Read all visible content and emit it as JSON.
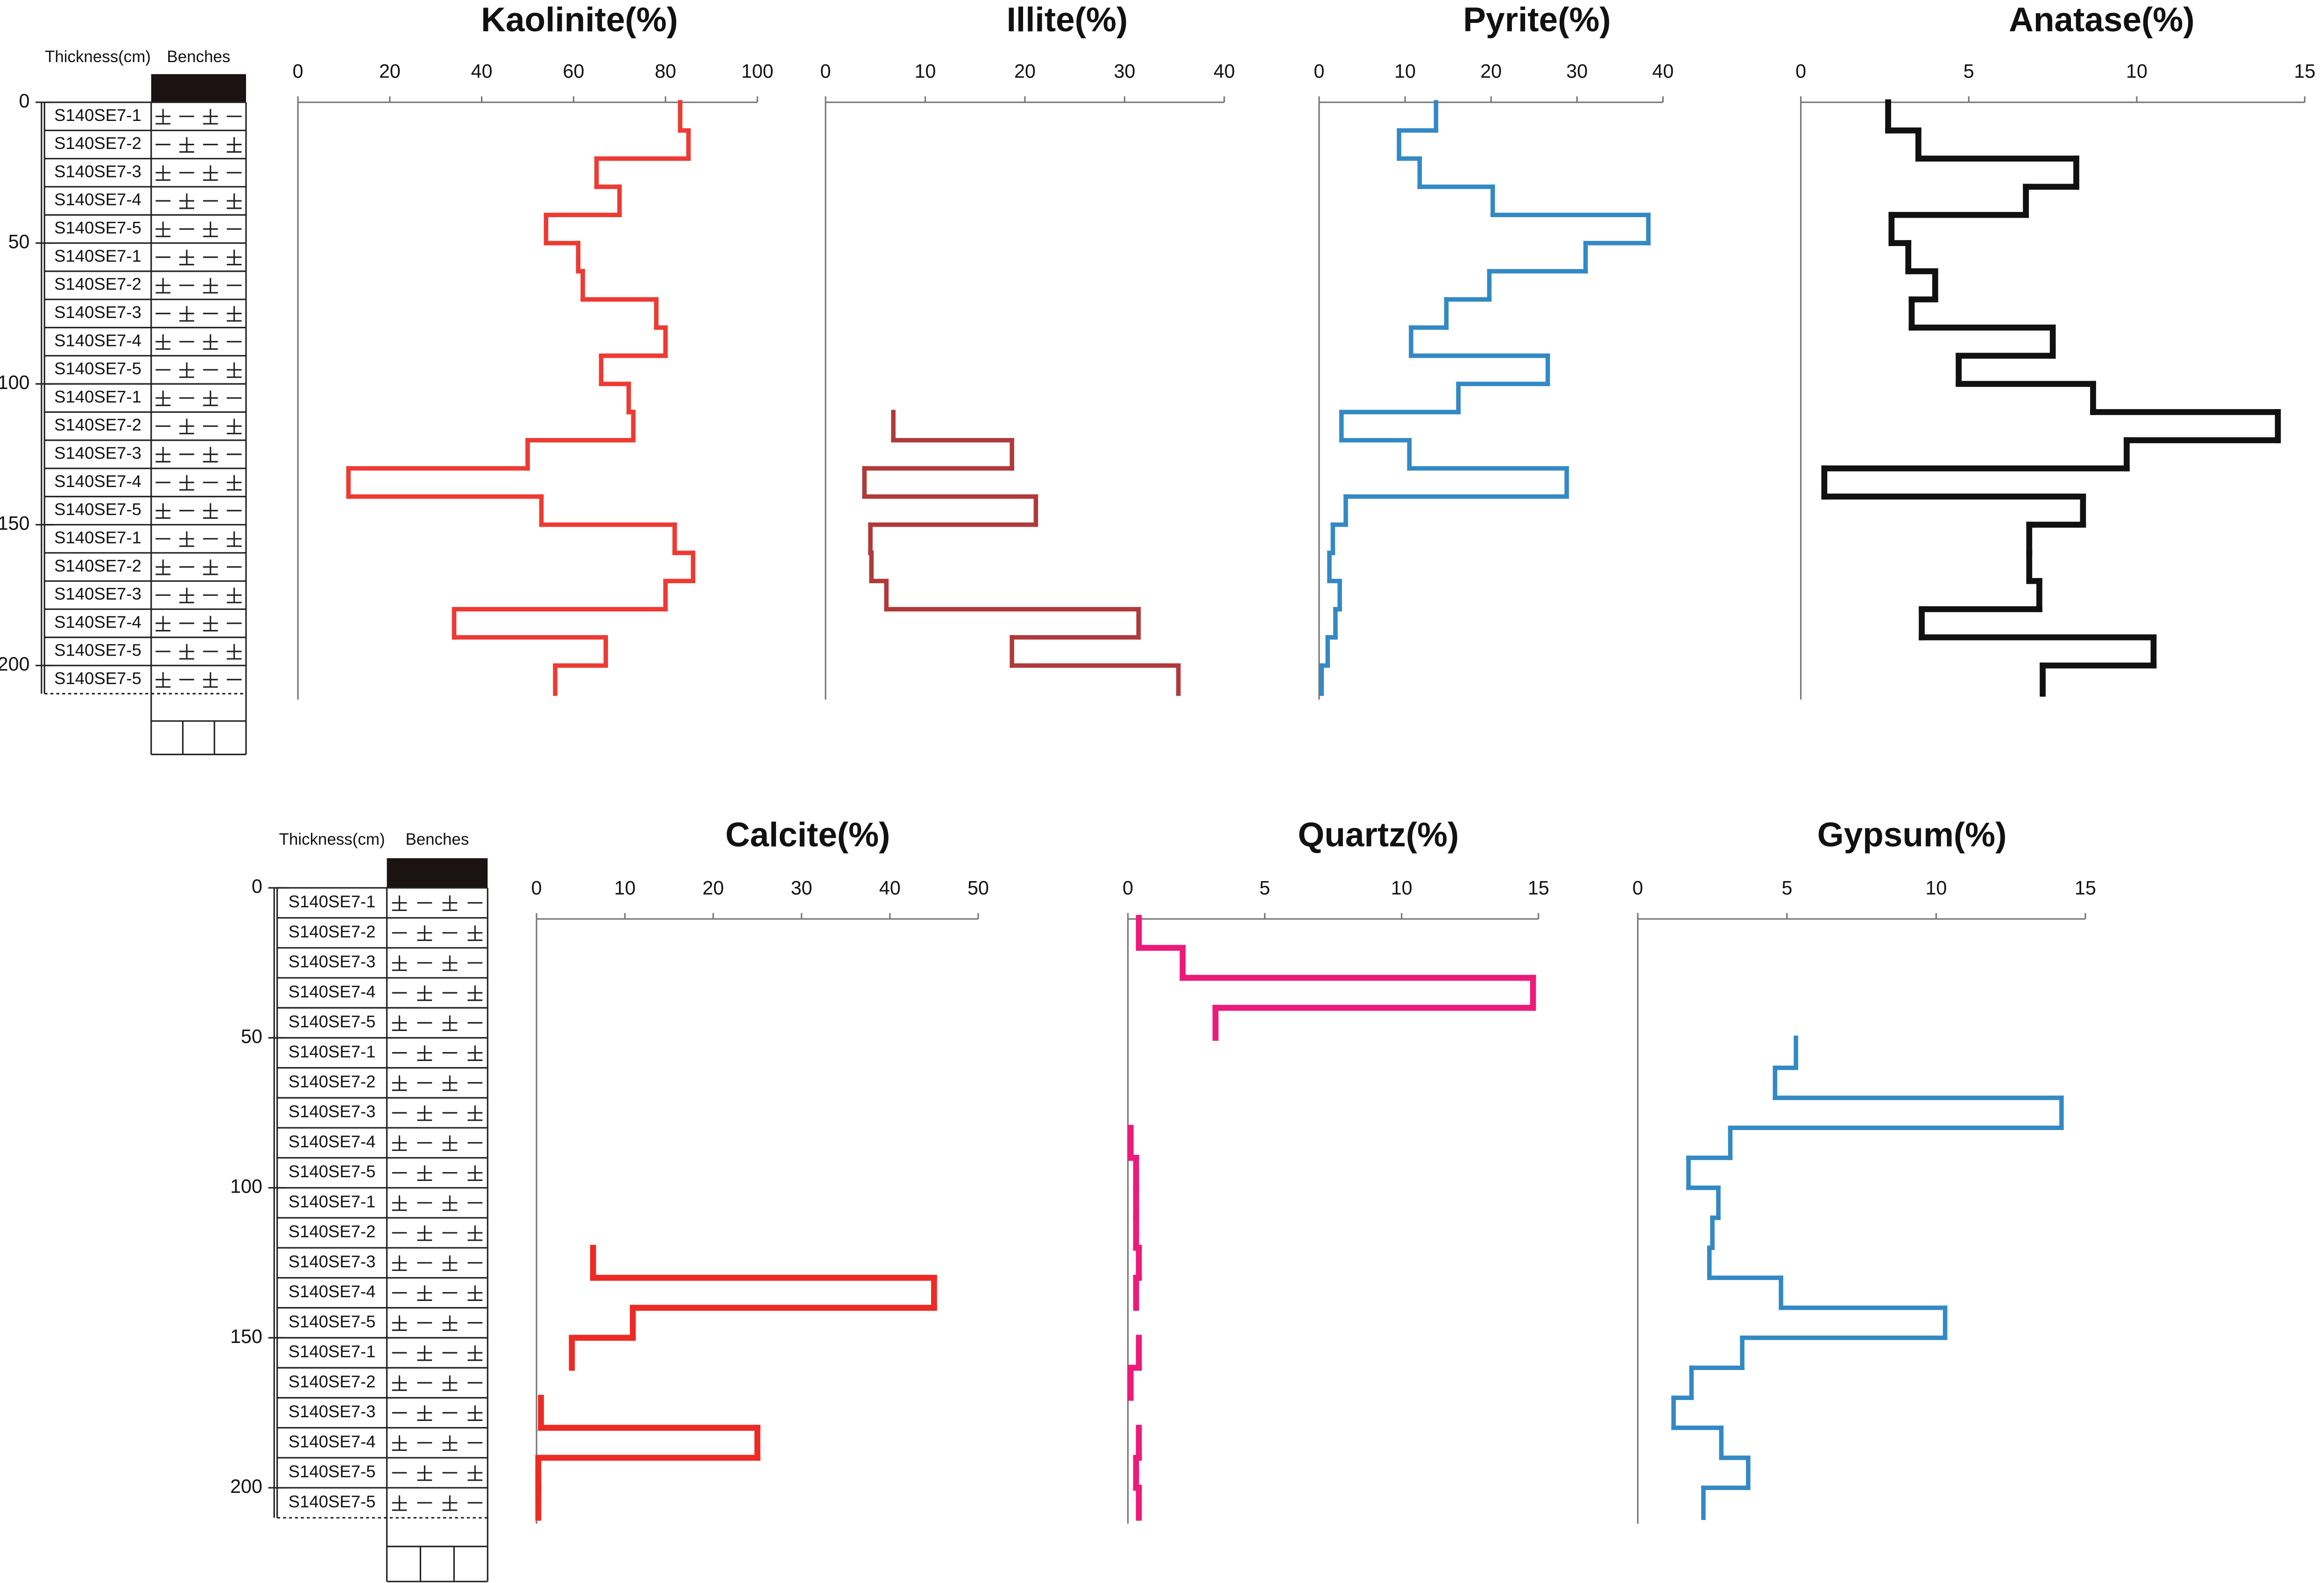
{
  "columns": [
    {
      "title": "Thickness(cm)",
      "header": "Benches",
      "ylim": [
        0,
        210
      ],
      "yticks": [
        0,
        50,
        100,
        150,
        200
      ],
      "samples": [
        "S140SE7-1",
        "S140SE7-2",
        "S140SE7-3",
        "S140SE7-4",
        "S140SE7-5",
        "S140SE7-1",
        "S140SE7-2",
        "S140SE7-3",
        "S140SE7-4",
        "S140SE7-5",
        "S140SE7-1",
        "S140SE7-2",
        "S140SE7-3",
        "S140SE7-4",
        "S140SE7-5",
        "S140SE7-1",
        "S140SE7-2",
        "S140SE7-3",
        "S140SE7-4",
        "S140SE7-5",
        "S140SE7-5"
      ]
    },
    {
      "title": "Thickness(cm)",
      "header": "Benches",
      "ylim": [
        0,
        210
      ],
      "yticks": [
        0,
        50,
        100,
        150,
        200
      ],
      "samples": [
        "S140SE7-1",
        "S140SE7-2",
        "S140SE7-3",
        "S140SE7-4",
        "S140SE7-5",
        "S140SE7-1",
        "S140SE7-2",
        "S140SE7-3",
        "S140SE7-4",
        "S140SE7-5",
        "S140SE7-1",
        "S140SE7-2",
        "S140SE7-3",
        "S140SE7-4",
        "S140SE7-5",
        "S140SE7-1",
        "S140SE7-2",
        "S140SE7-3",
        "S140SE7-4",
        "S140SE7-5",
        "S140SE7-5"
      ]
    }
  ],
  "chart_data": [
    {
      "type": "step",
      "title": "Kaolinite(%)",
      "color": "#ee3a32",
      "xlim": [
        0,
        100
      ],
      "xticks": [
        0,
        20,
        40,
        60,
        80,
        100
      ],
      "values": [
        83.2,
        85,
        65,
        70,
        54,
        61,
        62,
        78,
        80,
        66,
        72,
        73,
        50,
        11,
        53,
        82,
        86,
        80,
        34,
        67,
        56
      ]
    },
    {
      "type": "step",
      "title": "Illite(%)",
      "color": "#b0393a",
      "xlim": [
        0,
        40
      ],
      "xticks": [
        0,
        10,
        20,
        30,
        40
      ],
      "values": [
        null,
        null,
        null,
        null,
        null,
        null,
        null,
        null,
        null,
        null,
        null,
        6.8,
        18.7,
        3.9,
        21.1,
        4.5,
        4.6,
        6.1,
        31.4,
        18.7,
        35.4
      ]
    },
    {
      "type": "step",
      "title": "Pyrite(%)",
      "color": "#3389c4",
      "xlim": [
        0,
        40
      ],
      "xticks": [
        0,
        10,
        20,
        30,
        40
      ],
      "values": [
        13.6,
        9.3,
        11.7,
        20.2,
        38.3,
        31,
        19.8,
        14.8,
        10.7,
        26.6,
        16.2,
        2.6,
        10.5,
        28.8,
        3.1,
        1.6,
        1.2,
        2.4,
        1.9,
        1,
        0.3
      ]
    },
    {
      "type": "step",
      "title": "Anatase(%)",
      "color": "#111111",
      "xlim": [
        0,
        15
      ],
      "xticks": [
        0,
        5,
        10,
        15
      ],
      "values": [
        2.6,
        3.5,
        8.2,
        6.7,
        2.7,
        3.2,
        4,
        3.3,
        7.5,
        4.7,
        8.7,
        14.2,
        9.7,
        0.7,
        8.4,
        6.8,
        6.8,
        7.1,
        3.6,
        10.5,
        7.2
      ]
    },
    {
      "type": "step",
      "title": "Calcite(%)",
      "color": "#ee2a24",
      "xlim": [
        0,
        50
      ],
      "xticks": [
        0,
        10,
        20,
        30,
        40,
        50
      ],
      "values": [
        null,
        null,
        null,
        null,
        null,
        null,
        null,
        null,
        null,
        null,
        null,
        null,
        6.4,
        45,
        10.9,
        4.0,
        null,
        0.5,
        25,
        0.2,
        0.2
      ]
    },
    {
      "type": "step",
      "title": "Quartz(%)",
      "color": "#ec1a7a",
      "xlim": [
        0,
        15
      ],
      "xticks": [
        0,
        5,
        10,
        15
      ],
      "values": [
        null,
        0.4,
        2.0,
        14.8,
        3.2,
        null,
        null,
        null,
        0.1,
        0.3,
        0.3,
        0.3,
        0.4,
        0.3,
        null,
        0.4,
        0.1,
        null,
        0.4,
        0.3,
        0.4
      ]
    },
    {
      "type": "step",
      "title": "Gypsum(%)",
      "color": "#3389c4",
      "xlim": [
        0,
        15
      ],
      "xticks": [
        0,
        5,
        10,
        15
      ],
      "values": [
        null,
        null,
        null,
        null,
        null,
        5.3,
        4.6,
        14.2,
        3.1,
        1.7,
        2.7,
        2.5,
        2.4,
        4.8,
        10.3,
        3.5,
        1.8,
        1.2,
        2.8,
        3.7,
        2.2
      ]
    }
  ]
}
